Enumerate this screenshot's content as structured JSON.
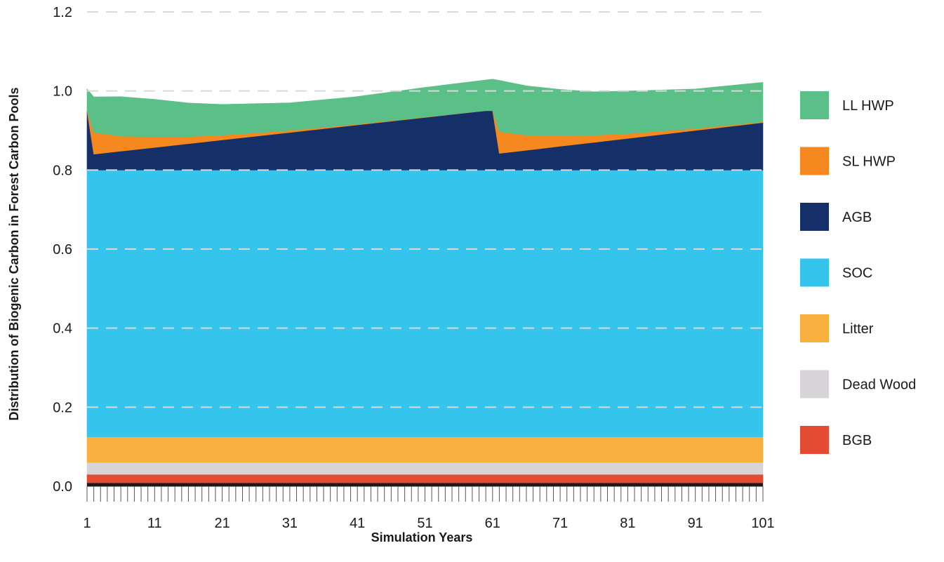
{
  "chart_data": {
    "type": "area",
    "stacked": true,
    "xlabel": "Simulation Years",
    "ylabel": "Distribution of Biogenic Carbon in Forest Carbon Pools",
    "xlim": [
      1,
      101
    ],
    "ylim": [
      0,
      1.2
    ],
    "x_ticks": [
      "1",
      "11",
      "21",
      "31",
      "41",
      "51",
      "61",
      "71",
      "81",
      "91",
      "101"
    ],
    "y_ticks": [
      "0.0",
      "0.2",
      "0.4",
      "0.6",
      "0.8",
      "1.0",
      "1.2"
    ],
    "grid": "horizontal dashed",
    "legend_position": "right",
    "series": [
      {
        "name": "BGB",
        "color": "#e34c32",
        "points": [
          [
            1,
            0.03
          ],
          [
            101,
            0.03
          ]
        ]
      },
      {
        "name": "Dead Wood",
        "color": "#d6d4d7",
        "points": [
          [
            1,
            0.03
          ],
          [
            101,
            0.03
          ]
        ]
      },
      {
        "name": "Litter",
        "color": "#f8b13e",
        "points": [
          [
            1,
            0.065
          ],
          [
            101,
            0.065
          ]
        ]
      },
      {
        "name": "SOC",
        "color": "#35c4ec",
        "points": [
          [
            1,
            0.675
          ],
          [
            101,
            0.675
          ]
        ]
      },
      {
        "name": "AGB",
        "color": "#152f68",
        "points": [
          [
            1,
            0.15
          ],
          [
            2,
            0.04
          ],
          [
            60,
            0.15
          ],
          [
            61,
            0.15
          ],
          [
            62,
            0.042
          ],
          [
            101,
            0.12
          ]
        ]
      },
      {
        "name": "SL HWP",
        "color": "#f5891f",
        "points": [
          [
            1,
            0.0
          ],
          [
            2,
            0.055
          ],
          [
            6,
            0.038
          ],
          [
            11,
            0.027
          ],
          [
            16,
            0.018
          ],
          [
            21,
            0.012
          ],
          [
            31,
            0.005
          ],
          [
            41,
            0.002
          ],
          [
            51,
            0.001
          ],
          [
            60,
            0.0
          ],
          [
            61,
            0.0
          ],
          [
            62,
            0.055
          ],
          [
            66,
            0.038
          ],
          [
            71,
            0.027
          ],
          [
            76,
            0.018
          ],
          [
            81,
            0.012
          ],
          [
            91,
            0.005
          ],
          [
            101,
            0.002
          ]
        ]
      },
      {
        "name": "LL HWP",
        "color": "#5bbf88",
        "points": [
          [
            1,
            0.055
          ],
          [
            2,
            0.09
          ],
          [
            6,
            0.1
          ],
          [
            11,
            0.095
          ],
          [
            16,
            0.085
          ],
          [
            21,
            0.078
          ],
          [
            31,
            0.07
          ],
          [
            41,
            0.07
          ],
          [
            51,
            0.075
          ],
          [
            60,
            0.078
          ],
          [
            61,
            0.08
          ],
          [
            62,
            0.13
          ],
          [
            66,
            0.125
          ],
          [
            71,
            0.117
          ],
          [
            76,
            0.11
          ],
          [
            81,
            0.108
          ],
          [
            91,
            0.1
          ],
          [
            101,
            0.1
          ]
        ]
      }
    ]
  }
}
